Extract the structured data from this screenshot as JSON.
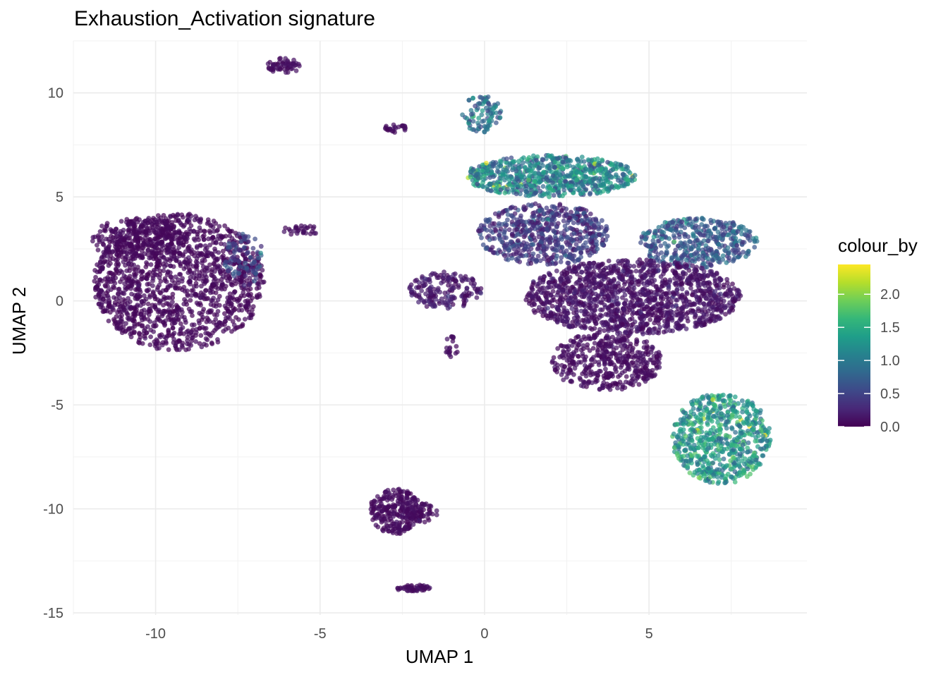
{
  "chart_data": {
    "type": "scatter",
    "title": "Exhaustion_Activation signature",
    "xlabel": "UMAP 1",
    "ylabel": "UMAP 2",
    "xlim": [
      -12.5,
      9.8
    ],
    "ylim": [
      -15.1,
      12.5
    ],
    "x_ticks": [
      -10,
      -5,
      0,
      5
    ],
    "y_ticks": [
      10,
      5,
      0,
      -5,
      -10,
      -15
    ],
    "x_tick_labels": [
      "-10",
      "-5",
      "0",
      "5"
    ],
    "y_tick_labels": [
      "10",
      "5",
      "0",
      "-5",
      "-10",
      "-15"
    ],
    "grid": true,
    "legend": {
      "title": "colour_by",
      "placement": "right",
      "range": [
        0,
        2.45
      ],
      "ticks": [
        0.0,
        0.5,
        1.0,
        1.5,
        2.0
      ],
      "tick_labels": [
        "0.0",
        "0.5",
        "1.0",
        "1.5",
        "2.0"
      ]
    },
    "colormap": [
      "#440154",
      "#482878",
      "#3e4989",
      "#31688e",
      "#26828e",
      "#1f9e89",
      "#35b779",
      "#6ece58",
      "#b5de2b",
      "#fde725"
    ],
    "clusters": [
      {
        "name": "left-large",
        "cx": -9.3,
        "cy": 0.9,
        "rx": 2.6,
        "ry": 3.3,
        "n": 1400,
        "level": 0.05,
        "spread": 0.04
      },
      {
        "name": "left-top-lobe",
        "cx": -10.5,
        "cy": 3.0,
        "rx": 1.5,
        "ry": 1.0,
        "n": 250,
        "level": 0.05,
        "spread": 0.03
      },
      {
        "name": "left-right-edge",
        "cx": -7.3,
        "cy": 2.0,
        "rx": 0.6,
        "ry": 1.3,
        "n": 80,
        "level": 0.5,
        "spread": 0.25
      },
      {
        "name": "top-small",
        "cx": -6.1,
        "cy": 11.3,
        "rx": 0.5,
        "ry": 0.4,
        "n": 60,
        "level": 0.08,
        "spread": 0.05
      },
      {
        "name": "small-mid",
        "cx": -2.7,
        "cy": 8.3,
        "rx": 0.35,
        "ry": 0.2,
        "n": 25,
        "level": 0.08,
        "spread": 0.05
      },
      {
        "name": "streak",
        "cx": -5.6,
        "cy": 3.4,
        "rx": 0.6,
        "ry": 0.25,
        "n": 30,
        "level": 0.08,
        "spread": 0.05
      },
      {
        "name": "center-left-blob",
        "cx": -1.2,
        "cy": 0.5,
        "rx": 1.1,
        "ry": 0.9,
        "n": 180,
        "level": 0.15,
        "spread": 0.12
      },
      {
        "name": "center-drip",
        "cx": -1.0,
        "cy": -2.2,
        "rx": 0.2,
        "ry": 0.5,
        "n": 20,
        "level": 0.08,
        "spread": 0.05
      },
      {
        "name": "upper-stalk",
        "cx": -0.1,
        "cy": 9.0,
        "rx": 0.6,
        "ry": 0.9,
        "n": 90,
        "level": 0.9,
        "spread": 0.45
      },
      {
        "name": "upper-band",
        "cx": 2.0,
        "cy": 6.0,
        "rx": 2.6,
        "ry": 1.0,
        "n": 700,
        "level": 1.05,
        "spread": 0.55
      },
      {
        "name": "right-mid-upper",
        "cx": 1.8,
        "cy": 3.2,
        "rx": 2.0,
        "ry": 1.5,
        "n": 600,
        "level": 0.4,
        "spread": 0.3
      },
      {
        "name": "right-arm",
        "cx": 6.5,
        "cy": 2.8,
        "rx": 1.8,
        "ry": 1.2,
        "n": 420,
        "level": 0.7,
        "spread": 0.35
      },
      {
        "name": "right-center",
        "cx": 4.5,
        "cy": 0.2,
        "rx": 3.3,
        "ry": 1.8,
        "n": 1400,
        "level": 0.12,
        "spread": 0.1
      },
      {
        "name": "right-bottom-left",
        "cx": 3.7,
        "cy": -2.9,
        "rx": 1.7,
        "ry": 1.4,
        "n": 450,
        "level": 0.08,
        "spread": 0.06
      },
      {
        "name": "bottom-right",
        "cx": 7.2,
        "cy": -6.6,
        "rx": 1.5,
        "ry": 2.2,
        "n": 650,
        "level": 1.3,
        "spread": 0.5
      },
      {
        "name": "bottom-small",
        "cx": -2.7,
        "cy": -10.1,
        "rx": 0.8,
        "ry": 1.1,
        "n": 260,
        "level": 0.07,
        "spread": 0.05
      },
      {
        "name": "bottom-small-ear",
        "cx": -1.9,
        "cy": -10.2,
        "rx": 0.5,
        "ry": 0.5,
        "n": 60,
        "level": 0.07,
        "spread": 0.05
      },
      {
        "name": "bottom-streak",
        "cx": -2.2,
        "cy": -13.8,
        "rx": 0.6,
        "ry": 0.15,
        "n": 50,
        "level": 0.08,
        "spread": 0.04
      }
    ]
  }
}
